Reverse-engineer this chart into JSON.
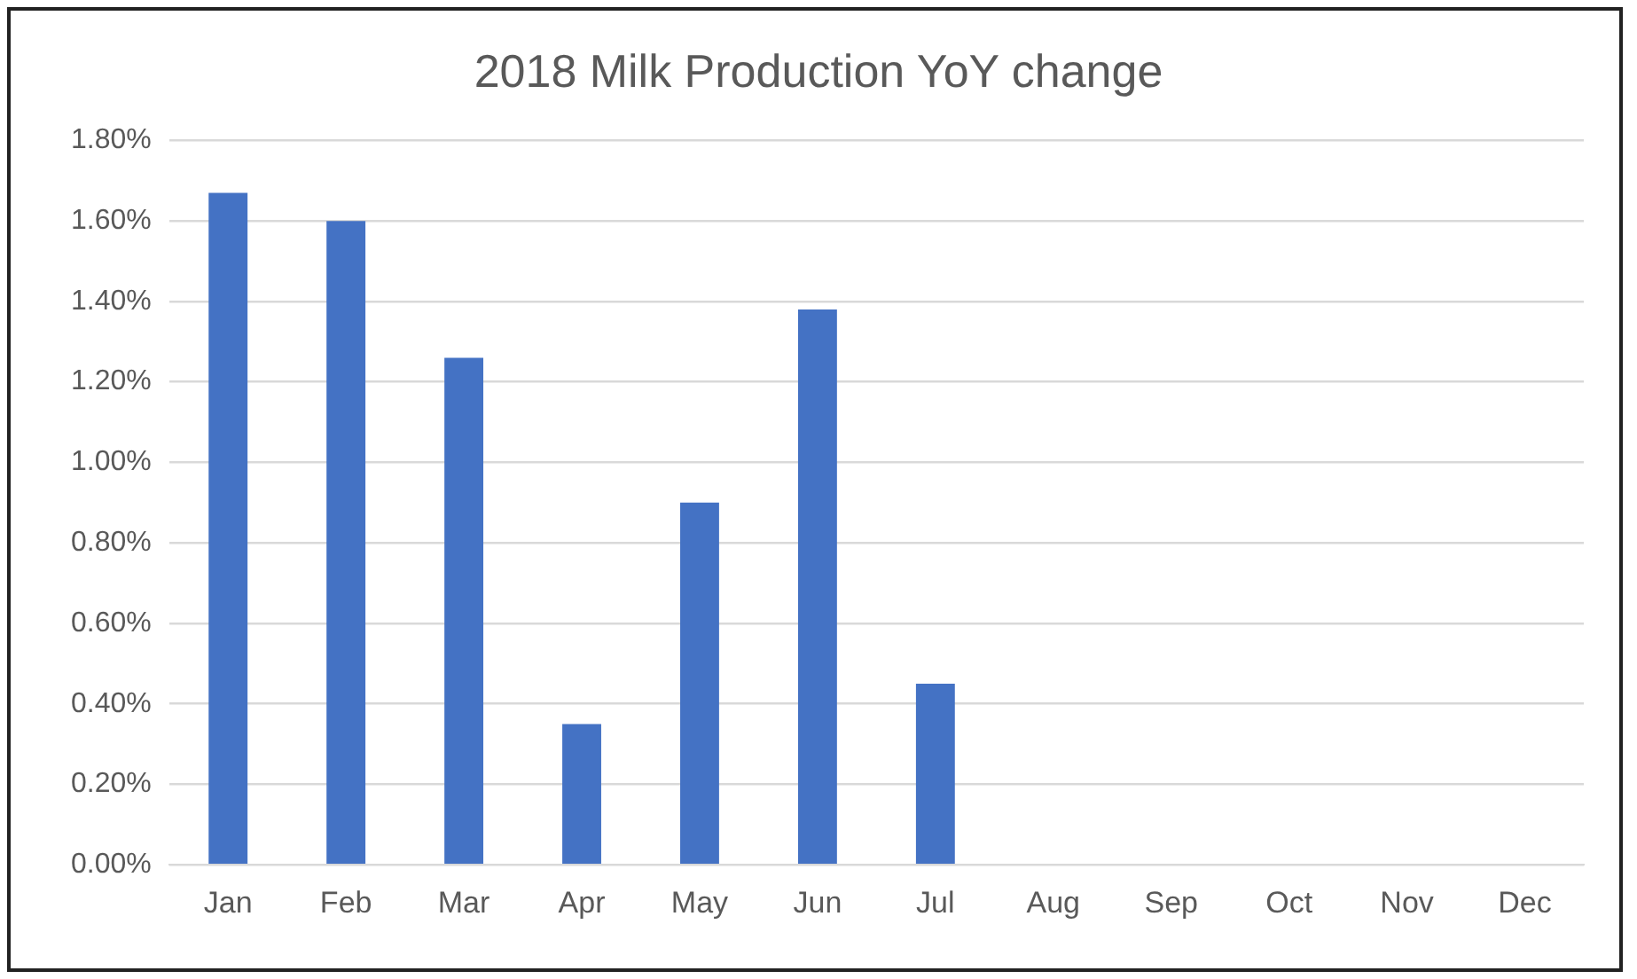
{
  "chart_data": {
    "type": "bar",
    "title": "2018 Milk Production YoY change",
    "categories": [
      "Jan",
      "Feb",
      "Mar",
      "Apr",
      "May",
      "Jun",
      "Jul",
      "Aug",
      "Sep",
      "Oct",
      "Nov",
      "Dec"
    ],
    "values": [
      1.67,
      1.6,
      1.26,
      0.35,
      0.9,
      1.38,
      0.45,
      null,
      null,
      null,
      null,
      null
    ],
    "color": "#4472c4",
    "ylim": [
      0,
      1.8
    ],
    "yticks": [
      {
        "value": 0,
        "label": "0.00%"
      },
      {
        "value": 0.2,
        "label": "0.20%"
      },
      {
        "value": 0.4,
        "label": "0.40%"
      },
      {
        "value": 0.6,
        "label": "0.60%"
      },
      {
        "value": 0.8,
        "label": "0.80%"
      },
      {
        "value": 1,
        "label": "1.00%"
      },
      {
        "value": 1.2,
        "label": "1.20%"
      },
      {
        "value": 1.4,
        "label": "1.40%"
      },
      {
        "value": 1.6,
        "label": "1.60%"
      },
      {
        "value": 1.8,
        "label": "1.80%"
      }
    ],
    "grid": "y",
    "legend": false
  }
}
